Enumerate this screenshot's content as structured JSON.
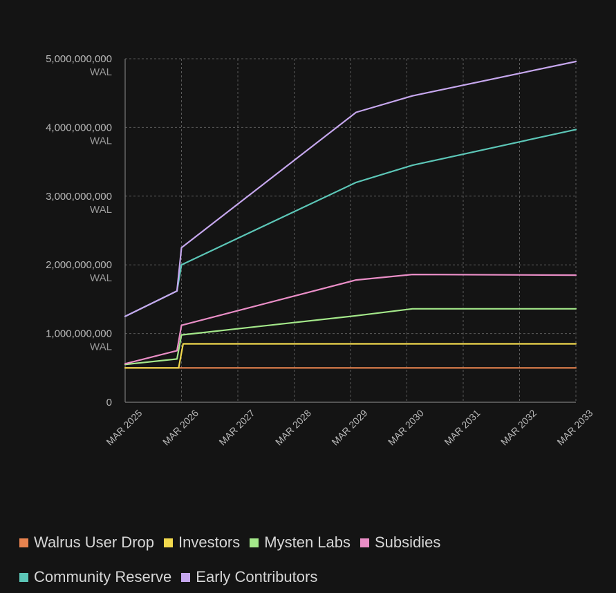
{
  "chart_data": {
    "type": "line",
    "title": "",
    "xlabel": "",
    "ylabel": "",
    "unit": "WAL",
    "ylim": [
      0,
      5000000000
    ],
    "xlim": [
      2025.0,
      2033.0
    ],
    "grid": true,
    "legend_position": "bottom",
    "y_ticks": [
      {
        "value": 0,
        "label": "0",
        "unit": ""
      },
      {
        "value": 1000000000,
        "label": "1,000,000,000",
        "unit": "WAL"
      },
      {
        "value": 2000000000,
        "label": "2,000,000,000",
        "unit": "WAL"
      },
      {
        "value": 3000000000,
        "label": "3,000,000,000",
        "unit": "WAL"
      },
      {
        "value": 4000000000,
        "label": "4,000,000,000",
        "unit": "WAL"
      },
      {
        "value": 5000000000,
        "label": "5,000,000,000",
        "unit": "WAL"
      }
    ],
    "x_ticks": [
      {
        "value": 2025,
        "label": "MAR 2025"
      },
      {
        "value": 2026,
        "label": "MAR 2026"
      },
      {
        "value": 2027,
        "label": "MAR 2027"
      },
      {
        "value": 2028,
        "label": "MAR 2028"
      },
      {
        "value": 2029,
        "label": "MAR 2029"
      },
      {
        "value": 2030,
        "label": "MAR 2030"
      },
      {
        "value": 2031,
        "label": "MAR 2031"
      },
      {
        "value": 2032,
        "label": "MAR 2032"
      },
      {
        "value": 2033,
        "label": "MAR 2033"
      }
    ],
    "series": [
      {
        "name": "Walrus User Drop",
        "color": "#e8834f",
        "points": [
          [
            2025.0,
            500000000
          ],
          [
            2033.0,
            500000000
          ]
        ]
      },
      {
        "name": "Investors",
        "color": "#f2d94e",
        "points": [
          [
            2025.0,
            500000000
          ],
          [
            2025.95,
            500000000
          ],
          [
            2026.03,
            850000000
          ],
          [
            2033.0,
            850000000
          ]
        ]
      },
      {
        "name": "Mysten Labs",
        "color": "#a4e88a",
        "points": [
          [
            2025.0,
            550000000
          ],
          [
            2025.92,
            630000000
          ],
          [
            2026.0,
            980000000
          ],
          [
            2029.1,
            1260000000
          ],
          [
            2030.1,
            1360000000
          ],
          [
            2033.0,
            1360000000
          ]
        ]
      },
      {
        "name": "Subsidies",
        "color": "#ea8ec7",
        "points": [
          [
            2025.0,
            560000000
          ],
          [
            2025.92,
            750000000
          ],
          [
            2026.0,
            1120000000
          ],
          [
            2029.1,
            1780000000
          ],
          [
            2030.1,
            1860000000
          ],
          [
            2033.0,
            1850000000
          ]
        ]
      },
      {
        "name": "Community Reserve",
        "color": "#5cc6b7",
        "points": [
          [
            2025.0,
            1250000000
          ],
          [
            2025.92,
            1620000000
          ],
          [
            2026.0,
            2000000000
          ],
          [
            2029.1,
            3200000000
          ],
          [
            2030.1,
            3450000000
          ],
          [
            2033.0,
            3970000000
          ]
        ]
      },
      {
        "name": "Early Contributors",
        "color": "#c6a7ee",
        "points": [
          [
            2025.0,
            1250000000
          ],
          [
            2025.92,
            1620000000
          ],
          [
            2026.0,
            2250000000
          ],
          [
            2029.1,
            4220000000
          ],
          [
            2030.1,
            4460000000
          ],
          [
            2033.0,
            4960000000
          ]
        ]
      }
    ]
  }
}
